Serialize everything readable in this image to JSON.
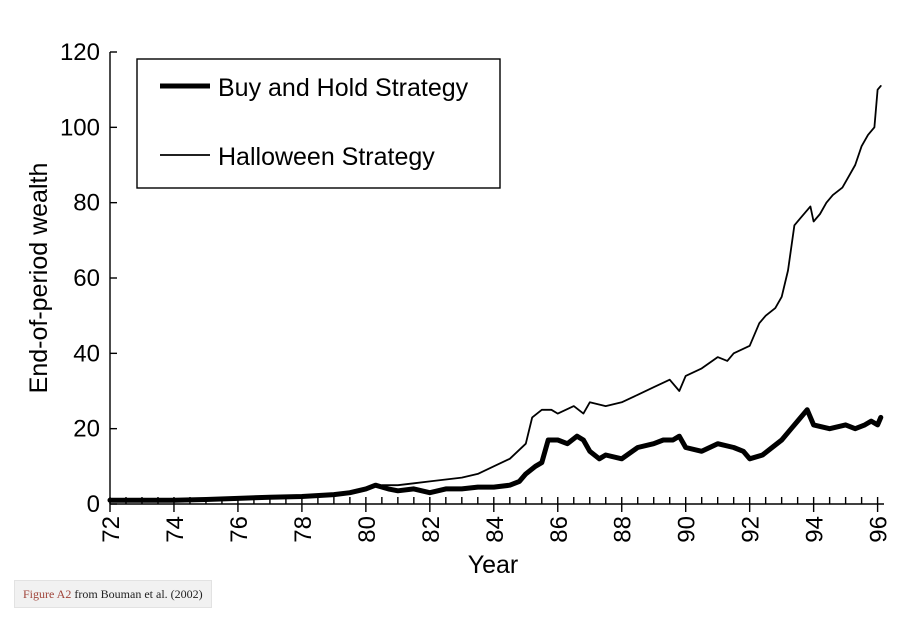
{
  "caption": {
    "figure_ref": "Figure A2",
    "source_text": " from Bouman et al. (2002)"
  },
  "chart_data": {
    "type": "line",
    "title": "",
    "xlabel": "Year",
    "ylabel": "End-of-period wealth",
    "xlim": [
      72,
      96.2
    ],
    "ylim": [
      0,
      120
    ],
    "x_ticks": [
      72,
      74,
      76,
      78,
      80,
      82,
      84,
      86,
      88,
      90,
      92,
      94,
      96
    ],
    "x_tick_labels": [
      "72",
      "74",
      "76",
      "78",
      "80",
      "82",
      "84",
      "86",
      "88",
      "90",
      "92",
      "94",
      "96"
    ],
    "y_ticks": [
      0,
      20,
      40,
      60,
      80,
      100,
      120
    ],
    "y_tick_labels": [
      "0",
      "20",
      "40",
      "60",
      "80",
      "100",
      "120"
    ],
    "legend_position": "top-left",
    "series": [
      {
        "name": "Buy and Hold Strategy",
        "style": "thick",
        "color": "#000000",
        "x": [
          72,
          73,
          74,
          75,
          76,
          77,
          78,
          79,
          79.5,
          80,
          80.3,
          80.7,
          81,
          81.5,
          82,
          82.5,
          83,
          83.5,
          84,
          84.5,
          84.8,
          85,
          85.3,
          85.5,
          85.7,
          86,
          86.3,
          86.6,
          86.8,
          87,
          87.3,
          87.5,
          88,
          88.5,
          89,
          89.3,
          89.6,
          89.8,
          90,
          90.5,
          91,
          91.5,
          91.8,
          92,
          92.4,
          92.7,
          93,
          93.3,
          93.5,
          93.8,
          94,
          94.5,
          95,
          95.3,
          95.6,
          95.8,
          96,
          96.1
        ],
        "y": [
          1,
          1,
          1,
          1.2,
          1.5,
          1.8,
          2,
          2.5,
          3,
          4,
          5,
          4,
          3.5,
          4,
          3,
          4,
          4,
          4.5,
          4.5,
          5,
          6,
          8,
          10,
          11,
          17,
          17,
          16,
          18,
          17,
          14,
          12,
          13,
          12,
          15,
          16,
          17,
          17,
          18,
          15,
          14,
          16,
          15,
          14,
          12,
          13,
          15,
          17,
          20,
          22,
          25,
          21,
          20,
          21,
          20,
          21,
          22,
          21,
          23
        ]
      },
      {
        "name": "Halloween Strategy",
        "style": "thin",
        "color": "#000000",
        "x": [
          72,
          73,
          74,
          75,
          76,
          77,
          78,
          79,
          79.5,
          80,
          80.5,
          81,
          81.5,
          82,
          82.5,
          83,
          83.5,
          84,
          84.5,
          85,
          85.2,
          85.5,
          85.8,
          86,
          86.5,
          86.8,
          87,
          87.5,
          88,
          88.5,
          89,
          89.5,
          89.8,
          90,
          90.5,
          91,
          91.3,
          91.5,
          92,
          92.3,
          92.5,
          92.8,
          93,
          93.2,
          93.4,
          93.6,
          93.9,
          94,
          94.2,
          94.4,
          94.6,
          94.9,
          95.1,
          95.3,
          95.5,
          95.7,
          95.9,
          96,
          96.1
        ],
        "y": [
          0.8,
          0.9,
          1,
          1.2,
          1.5,
          1.8,
          2,
          2.5,
          3,
          4,
          5,
          5,
          5.5,
          6,
          6.5,
          7,
          8,
          10,
          12,
          16,
          23,
          25,
          25,
          24,
          26,
          24,
          27,
          26,
          27,
          29,
          31,
          33,
          30,
          34,
          36,
          39,
          38,
          40,
          42,
          48,
          50,
          52,
          55,
          62,
          74,
          76,
          79,
          75,
          77,
          80,
          82,
          84,
          87,
          90,
          95,
          98,
          100,
          110,
          111
        ]
      }
    ]
  }
}
